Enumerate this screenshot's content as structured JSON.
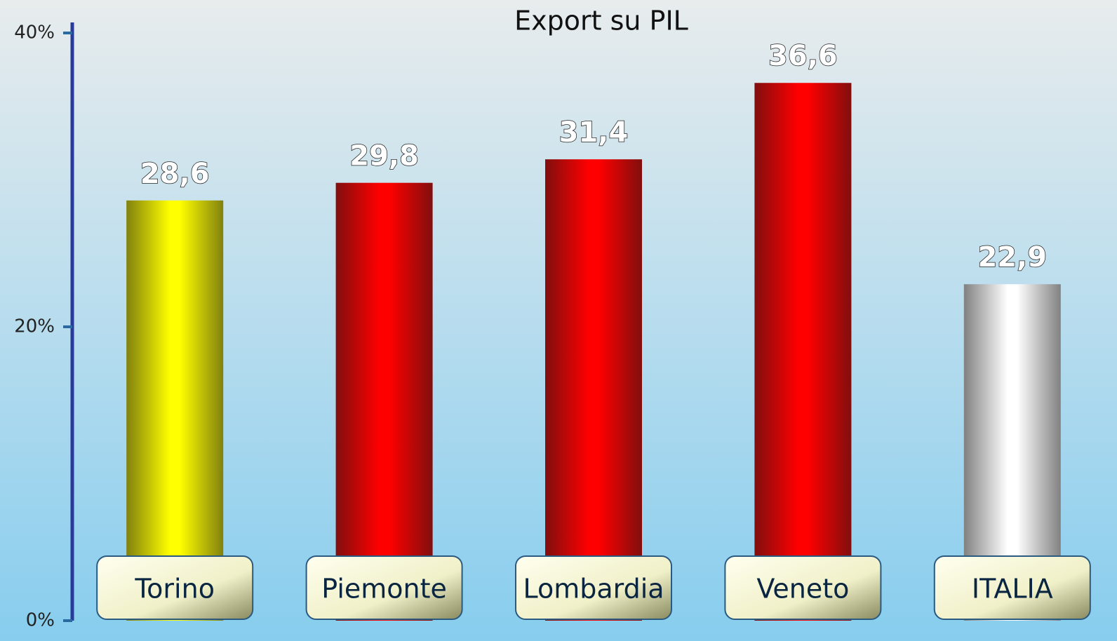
{
  "chart_data": {
    "type": "bar",
    "title": "Export su PIL",
    "categories": [
      "Torino",
      "Piemonte",
      "Lombardia",
      "Veneto",
      "ITALIA"
    ],
    "values": [
      28.6,
      29.8,
      31.4,
      36.6,
      22.9
    ],
    "value_labels": [
      "28,6",
      "29,8",
      "31,4",
      "36,6",
      "22,9"
    ],
    "colors": [
      "#ffff00",
      "#ff0000",
      "#ff0000",
      "#ff0000",
      "#ffffff"
    ],
    "ylim": [
      0,
      40
    ],
    "yticks": [
      {
        "value": 0,
        "label": "0%"
      },
      {
        "value": 20,
        "label": "20%"
      },
      {
        "value": 40,
        "label": "40%"
      }
    ]
  }
}
